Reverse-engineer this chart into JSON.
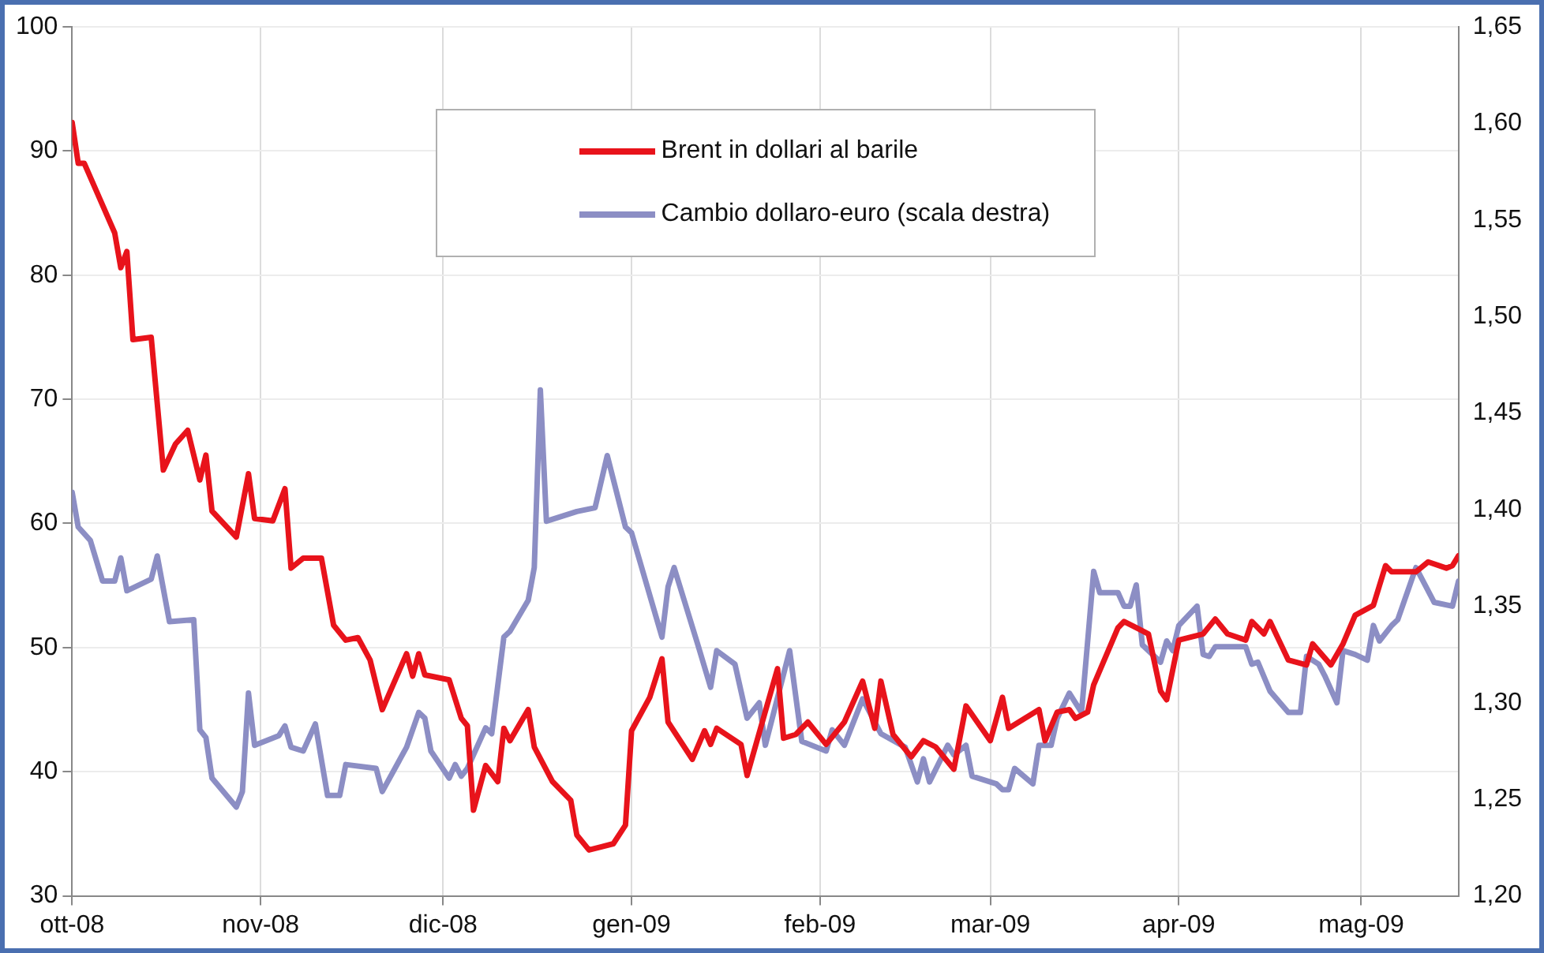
{
  "chart_data": {
    "type": "line",
    "legend": "top",
    "grid": true,
    "line_style": "solid",
    "marker": "none",
    "xlim": [
      "2008-10-01",
      "2009-05-17"
    ],
    "xticks": [
      {
        "value": "2008-10-01",
        "label": "ott-08"
      },
      {
        "value": "2008-11-01",
        "label": "nov-08"
      },
      {
        "value": "2008-12-01",
        "label": "dic-08"
      },
      {
        "value": "2009-01-01",
        "label": "gen-09"
      },
      {
        "value": "2009-02-01",
        "label": "feb-09"
      },
      {
        "value": "2009-03-01",
        "label": "mar-09"
      },
      {
        "value": "2009-04-01",
        "label": "apr-09"
      },
      {
        "value": "2009-05-01",
        "label": "mag-09"
      }
    ],
    "ylim": [
      30,
      100
    ],
    "yticks": [
      30,
      40,
      50,
      60,
      70,
      80,
      90,
      100
    ],
    "y2lim": [
      1.2,
      1.65
    ],
    "y2ticks": [
      {
        "value": 1.2,
        "label": "1,20"
      },
      {
        "value": 1.25,
        "label": "1,25"
      },
      {
        "value": 1.3,
        "label": "1,30"
      },
      {
        "value": 1.35,
        "label": "1,35"
      },
      {
        "value": 1.4,
        "label": "1,40"
      },
      {
        "value": 1.45,
        "label": "1,45"
      },
      {
        "value": 1.5,
        "label": "1,50"
      },
      {
        "value": 1.55,
        "label": "1,55"
      },
      {
        "value": 1.6,
        "label": "1,60"
      },
      {
        "value": 1.65,
        "label": "1,65"
      }
    ],
    "series": [
      {
        "name": "Brent in dollari al barile",
        "color": "#e8131b",
        "x": [
          "2008-10-01",
          "2008-10-02",
          "2008-10-03",
          "2008-10-08",
          "2008-10-09",
          "2008-10-10",
          "2008-10-11",
          "2008-10-14",
          "2008-10-16",
          "2008-10-18",
          "2008-10-20",
          "2008-10-22",
          "2008-10-23",
          "2008-10-24",
          "2008-10-28",
          "2008-10-30",
          "2008-10-31",
          "2008-11-03",
          "2008-11-05",
          "2008-11-06",
          "2008-11-08",
          "2008-11-11",
          "2008-11-13",
          "2008-11-15",
          "2008-11-17",
          "2008-11-19",
          "2008-11-21",
          "2008-11-25",
          "2008-11-26",
          "2008-11-27",
          "2008-11-28",
          "2008-12-02",
          "2008-12-04",
          "2008-12-05",
          "2008-12-06",
          "2008-12-08",
          "2008-12-10",
          "2008-12-11",
          "2008-12-12",
          "2008-12-15",
          "2008-12-16",
          "2008-12-19",
          "2008-12-22",
          "2008-12-23",
          "2008-12-25",
          "2008-12-29",
          "2008-12-31",
          "2009-01-01",
          "2009-01-04",
          "2009-01-06",
          "2009-01-07",
          "2009-01-11",
          "2009-01-13",
          "2009-01-14",
          "2009-01-15",
          "2009-01-19",
          "2009-01-20",
          "2009-01-25",
          "2009-01-26",
          "2009-01-28",
          "2009-01-30",
          "2009-02-02",
          "2009-02-05",
          "2009-02-08",
          "2009-02-10",
          "2009-02-11",
          "2009-02-13",
          "2009-02-16",
          "2009-02-18",
          "2009-02-20",
          "2009-02-23",
          "2009-02-25",
          "2009-03-01",
          "2009-03-03",
          "2009-03-04",
          "2009-03-09",
          "2009-03-10",
          "2009-03-12",
          "2009-03-14",
          "2009-03-15",
          "2009-03-17",
          "2009-03-18",
          "2009-03-22",
          "2009-03-23",
          "2009-03-25",
          "2009-03-27",
          "2009-03-29",
          "2009-03-30",
          "2009-04-01",
          "2009-04-05",
          "2009-04-07",
          "2009-04-09",
          "2009-04-12",
          "2009-04-13",
          "2009-04-15",
          "2009-04-16",
          "2009-04-19",
          "2009-04-22",
          "2009-04-23",
          "2009-04-26",
          "2009-04-28",
          "2009-04-30",
          "2009-05-03",
          "2009-05-05",
          "2009-05-06",
          "2009-05-10",
          "2009-05-12",
          "2009-05-15",
          "2009-05-16",
          "2009-05-17"
        ],
        "values": [
          92.3,
          89,
          89,
          83.4,
          80.6,
          81.9,
          74.8,
          75,
          64.3,
          66.4,
          67.5,
          63.5,
          65.5,
          61,
          58.9,
          64,
          60.4,
          60.2,
          62.8,
          56.4,
          57.2,
          57.2,
          51.8,
          50.6,
          50.8,
          49,
          45,
          49.5,
          47.7,
          49.5,
          47.8,
          47.4,
          44.3,
          43.7,
          36.9,
          40.5,
          39.2,
          43.5,
          42.5,
          45,
          42,
          39.2,
          37.7,
          34.9,
          33.7,
          34.2,
          35.7,
          43.3,
          46,
          49.1,
          44,
          41,
          43.3,
          42.2,
          43.5,
          42.2,
          39.7,
          48.3,
          42.7,
          43,
          44,
          42.2,
          44,
          47.3,
          43.5,
          47.3,
          43,
          41.2,
          42.5,
          42,
          40.2,
          45.3,
          42.5,
          46,
          43.5,
          45,
          42.5,
          44.8,
          45,
          44.3,
          44.8,
          47,
          51.6,
          52.1,
          51.6,
          51.1,
          46.5,
          45.8,
          50.6,
          51.1,
          52.3,
          51.1,
          50.6,
          52.1,
          51.1,
          52.1,
          49,
          48.6,
          50.3,
          48.6,
          50.3,
          52.6,
          53.4,
          56.6,
          56.1,
          56.1,
          56.9,
          56.4,
          56.6,
          57.4
        ]
      },
      {
        "name": "Cambio dollaro-euro (scala destra)",
        "color": "#8c8ec4",
        "axis": "y2",
        "x": [
          "2008-10-01",
          "2008-10-02",
          "2008-10-04",
          "2008-10-06",
          "2008-10-08",
          "2008-10-09",
          "2008-10-10",
          "2008-10-14",
          "2008-10-15",
          "2008-10-17",
          "2008-10-21",
          "2008-10-22",
          "2008-10-23",
          "2008-10-24",
          "2008-10-28",
          "2008-10-29",
          "2008-10-30",
          "2008-10-31",
          "2008-11-04",
          "2008-11-05",
          "2008-11-06",
          "2008-11-08",
          "2008-11-10",
          "2008-11-12",
          "2008-11-14",
          "2008-11-15",
          "2008-11-20",
          "2008-11-21",
          "2008-11-25",
          "2008-11-27",
          "2008-11-28",
          "2008-11-29",
          "2008-12-02",
          "2008-12-03",
          "2008-12-04",
          "2008-12-05",
          "2008-12-08",
          "2008-12-09",
          "2008-12-11",
          "2008-12-12",
          "2008-12-15",
          "2008-12-16",
          "2008-12-17",
          "2008-12-18",
          "2008-12-23",
          "2008-12-26",
          "2008-12-28",
          "2008-12-31",
          "2009-01-01",
          "2009-01-06",
          "2009-01-07",
          "2009-01-08",
          "2009-01-12",
          "2009-01-14",
          "2009-01-15",
          "2009-01-18",
          "2009-01-20",
          "2009-01-22",
          "2009-01-23",
          "2009-01-27",
          "2009-01-29",
          "2009-02-02",
          "2009-02-03",
          "2009-02-05",
          "2009-02-08",
          "2009-02-11",
          "2009-02-15",
          "2009-02-17",
          "2009-02-18",
          "2009-02-19",
          "2009-02-22",
          "2009-02-23",
          "2009-02-25",
          "2009-02-26",
          "2009-03-02",
          "2009-03-03",
          "2009-03-04",
          "2009-03-05",
          "2009-03-08",
          "2009-03-09",
          "2009-03-11",
          "2009-03-12",
          "2009-03-14",
          "2009-03-16",
          "2009-03-18",
          "2009-03-19",
          "2009-03-22",
          "2009-03-23",
          "2009-03-24",
          "2009-03-25",
          "2009-03-26",
          "2009-03-29",
          "2009-03-30",
          "2009-03-31",
          "2009-04-01",
          "2009-04-04",
          "2009-04-05",
          "2009-04-06",
          "2009-04-07",
          "2009-04-12",
          "2009-04-13",
          "2009-04-14",
          "2009-04-16",
          "2009-04-19",
          "2009-04-21",
          "2009-04-22",
          "2009-04-24",
          "2009-04-25",
          "2009-04-27",
          "2009-04-28",
          "2009-04-30",
          "2009-05-02",
          "2009-05-03",
          "2009-05-04",
          "2009-05-06",
          "2009-05-07",
          "2009-05-10",
          "2009-05-13",
          "2009-05-16",
          "2009-05-17"
        ],
        "values": [
          1.409,
          1.391,
          1.384,
          1.363,
          1.363,
          1.375,
          1.358,
          1.364,
          1.376,
          1.342,
          1.343,
          1.286,
          1.282,
          1.261,
          1.246,
          1.254,
          1.305,
          1.278,
          1.283,
          1.288,
          1.277,
          1.275,
          1.289,
          1.252,
          1.252,
          1.268,
          1.266,
          1.254,
          1.277,
          1.295,
          1.292,
          1.275,
          1.261,
          1.268,
          1.262,
          1.266,
          1.287,
          1.284,
          1.334,
          1.337,
          1.353,
          1.37,
          1.462,
          1.394,
          1.399,
          1.401,
          1.428,
          1.391,
          1.388,
          1.334,
          1.36,
          1.37,
          1.329,
          1.308,
          1.327,
          1.32,
          1.292,
          1.3,
          1.278,
          1.327,
          1.28,
          1.275,
          1.286,
          1.278,
          1.302,
          1.284,
          1.277,
          1.259,
          1.271,
          1.259,
          1.278,
          1.273,
          1.278,
          1.262,
          1.258,
          1.255,
          1.255,
          1.266,
          1.258,
          1.278,
          1.278,
          1.292,
          1.305,
          1.295,
          1.368,
          1.357,
          1.357,
          1.35,
          1.35,
          1.361,
          1.33,
          1.321,
          1.332,
          1.327,
          1.34,
          1.35,
          1.325,
          1.324,
          1.329,
          1.329,
          1.32,
          1.321,
          1.306,
          1.295,
          1.295,
          1.324,
          1.32,
          1.314,
          1.3,
          1.327,
          1.325,
          1.322,
          1.34,
          1.332,
          1.34,
          1.343,
          1.37,
          1.352,
          1.35,
          1.363
        ]
      }
    ]
  }
}
